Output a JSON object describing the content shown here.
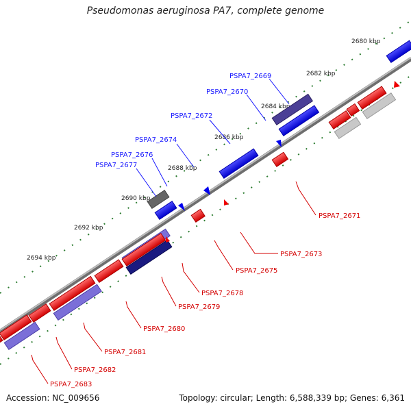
{
  "title": "Pseudomonas aeruginosa PA7, complete genome",
  "footer": {
    "accession": "Accession: NC_009656",
    "summary": "Topology: circular; Length: 6,588,339 bp; Genes: 6,361"
  },
  "colors": {
    "forward_gene": "#0000ff",
    "reverse_gene": "#ff0000",
    "backbone": "#888888",
    "tick": "#2e7d32",
    "label_blue": "#1a1aff",
    "label_red": "#d40000"
  },
  "ticks": [
    "2680 kbp",
    "2682 kbp",
    "2684 kbp",
    "2686 kbp",
    "2688 kbp",
    "2690 kbp",
    "2692 kbp",
    "2694 kbp"
  ],
  "labels_top": [
    "PSPA7_2669",
    "PSPA7_2670",
    "PSPA7_2672",
    "PSPA7_2674",
    "PSPA7_2676",
    "PSPA7_2677"
  ],
  "labels_bottom": [
    "PSPA7_2671",
    "PSPA7_2673",
    "PSPA7_2675",
    "PSPA7_2678",
    "PSPA7_2679",
    "PSPA7_2680",
    "PSPA7_2681",
    "PSPA7_2682",
    "PSPA7_2683"
  ]
}
